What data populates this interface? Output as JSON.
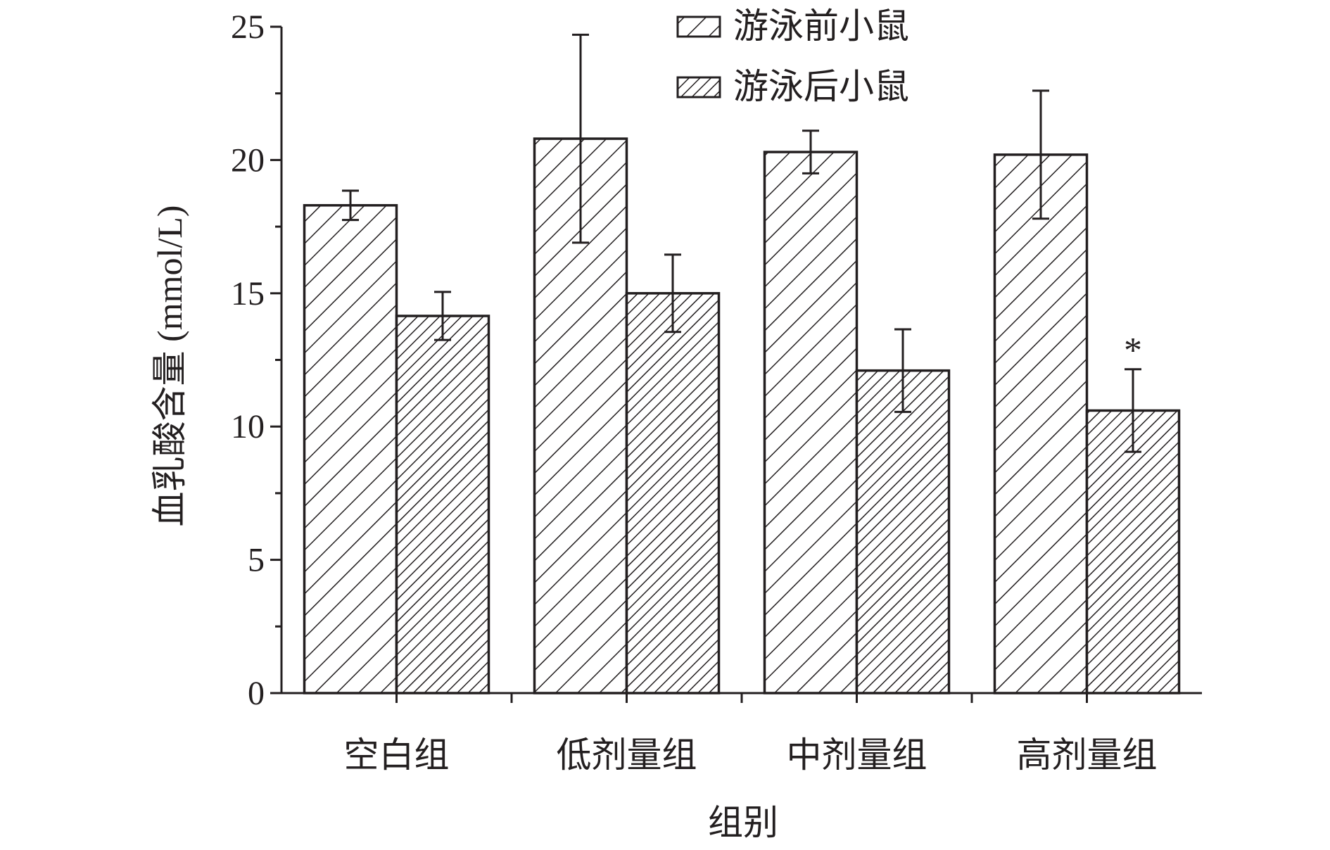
{
  "chart_data": {
    "type": "bar",
    "xlabel": "组别",
    "ylabel": "血乳酸含量 (mmol/L)",
    "ylim": [
      0,
      25
    ],
    "yticks": [
      0,
      5,
      10,
      15,
      20,
      25
    ],
    "categories": [
      "空白组",
      "低剂量组",
      "中剂量组",
      "高剂量组"
    ],
    "series": [
      {
        "name": "游泳前小鼠",
        "pattern": "sparse-diagonal-hatch",
        "values": [
          18.3,
          20.8,
          20.3,
          20.2
        ],
        "errors": [
          0.55,
          3.9,
          0.8,
          2.4
        ]
      },
      {
        "name": "游泳后小鼠",
        "pattern": "dense-diagonal-hatch",
        "values": [
          14.15,
          15.0,
          12.1,
          10.6
        ],
        "errors": [
          0.9,
          1.45,
          1.55,
          1.55
        ]
      }
    ],
    "annotations": [
      {
        "category": "高剂量组",
        "series": "游泳后小鼠",
        "text": "*"
      }
    ],
    "legend_position": "top-center",
    "grid": false,
    "colors": {
      "ink": "#231f20",
      "fill": "#ffffff"
    }
  }
}
